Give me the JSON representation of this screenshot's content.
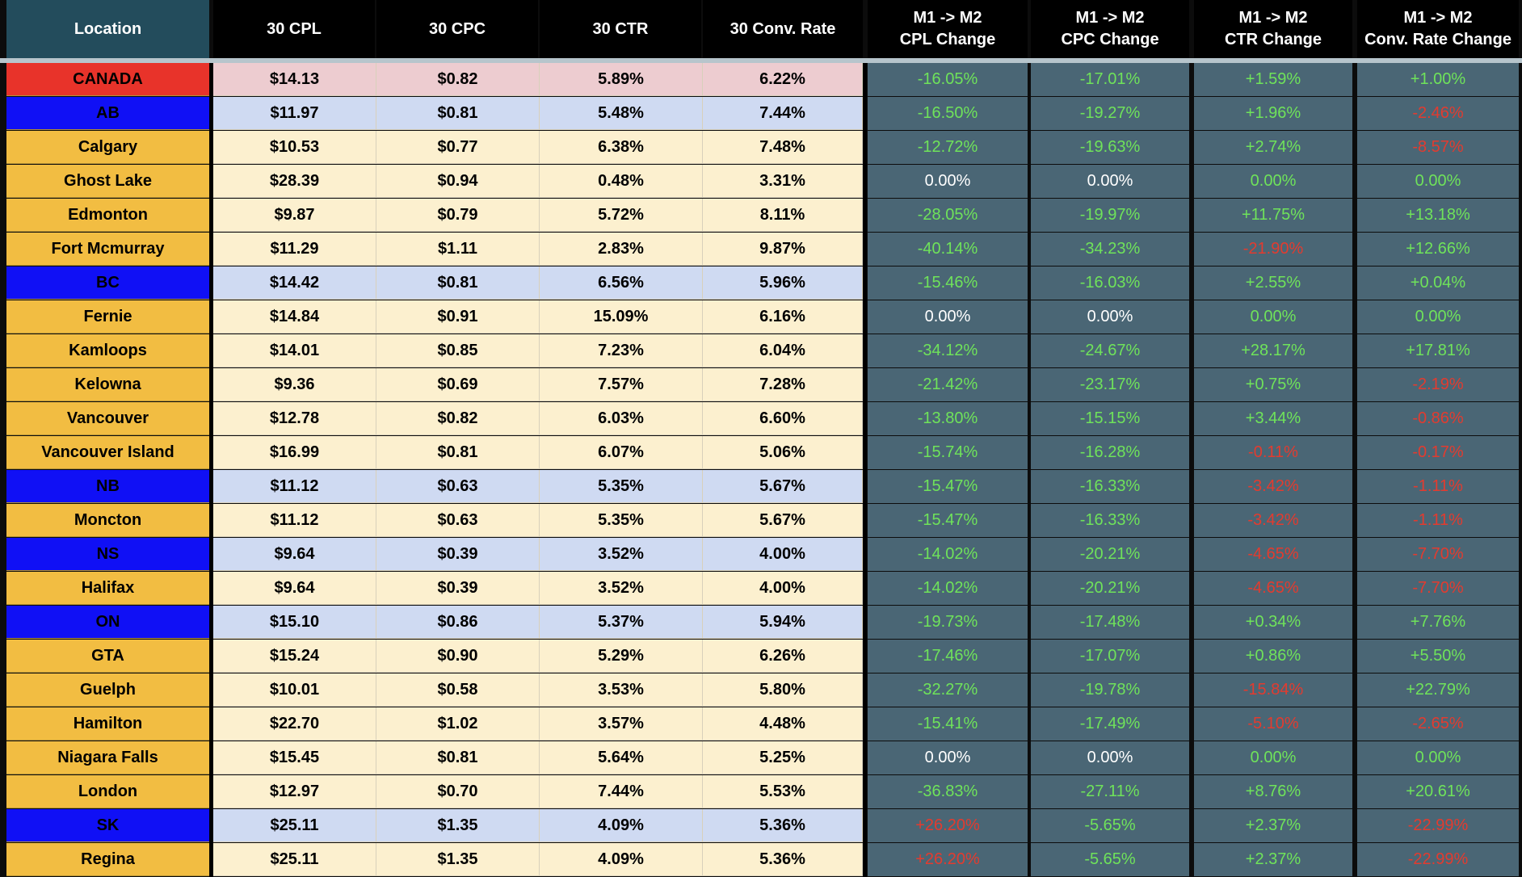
{
  "header": {
    "location": "Location",
    "cpl": "30 CPL",
    "cpc": "30 CPC",
    "ctr": "30 CTR",
    "conv": "30 Conv. Rate",
    "cpl_change": "M1 -> M2\nCPL Change",
    "cpc_change": "M1 -> M2\nCPC Change",
    "ctr_change": "M1 -> M2\nCTR Change",
    "conv_change": "M1 -> M2\nConv. Rate Change"
  },
  "colors": {
    "country_loc": "#e8332a",
    "country_data": "#edccd0",
    "province_loc": "#1010f5",
    "province_data": "#cfdaf2",
    "city_loc": "#f2bd42",
    "city_data": "#fcf0cf",
    "change_bg": "#4a6675",
    "positive": "#6fe35a",
    "negative": "#e33b2f"
  },
  "rows": [
    {
      "type": "country",
      "location": "CANADA",
      "cpl": "$14.13",
      "cpc": "$0.82",
      "ctr": "5.89%",
      "conv": "6.22%",
      "cpl_change": "-16.05%",
      "cpc_change": "-17.01%",
      "ctr_change": "+1.59%",
      "conv_change": "+1.00%",
      "cpl_s": "pos",
      "cpc_s": "pos",
      "ctr_s": "pos",
      "conv_s": "pos"
    },
    {
      "type": "province",
      "location": "AB",
      "cpl": "$11.97",
      "cpc": "$0.81",
      "ctr": "5.48%",
      "conv": "7.44%",
      "cpl_change": "-16.50%",
      "cpc_change": "-19.27%",
      "ctr_change": "+1.96%",
      "conv_change": "-2.46%",
      "cpl_s": "pos",
      "cpc_s": "pos",
      "ctr_s": "pos",
      "conv_s": "neg"
    },
    {
      "type": "city",
      "location": "Calgary",
      "cpl": "$10.53",
      "cpc": "$0.77",
      "ctr": "6.38%",
      "conv": "7.48%",
      "cpl_change": "-12.72%",
      "cpc_change": "-19.63%",
      "ctr_change": "+2.74%",
      "conv_change": "-8.57%",
      "cpl_s": "pos",
      "cpc_s": "pos",
      "ctr_s": "pos",
      "conv_s": "neg"
    },
    {
      "type": "city",
      "location": "Ghost Lake",
      "cpl": "$28.39",
      "cpc": "$0.94",
      "ctr": "0.48%",
      "conv": "3.31%",
      "cpl_change": "0.00%",
      "cpc_change": "0.00%",
      "ctr_change": "0.00%",
      "conv_change": "0.00%",
      "cpl_s": "zero",
      "cpc_s": "zero",
      "ctr_s": "pos",
      "conv_s": "pos"
    },
    {
      "type": "city",
      "location": "Edmonton",
      "cpl": "$9.87",
      "cpc": "$0.79",
      "ctr": "5.72%",
      "conv": "8.11%",
      "cpl_change": "-28.05%",
      "cpc_change": "-19.97%",
      "ctr_change": "+11.75%",
      "conv_change": "+13.18%",
      "cpl_s": "pos",
      "cpc_s": "pos",
      "ctr_s": "pos",
      "conv_s": "pos"
    },
    {
      "type": "city",
      "location": "Fort Mcmurray",
      "cpl": "$11.29",
      "cpc": "$1.11",
      "ctr": "2.83%",
      "conv": "9.87%",
      "cpl_change": "-40.14%",
      "cpc_change": "-34.23%",
      "ctr_change": "-21.90%",
      "conv_change": "+12.66%",
      "cpl_s": "pos",
      "cpc_s": "pos",
      "ctr_s": "neg",
      "conv_s": "pos"
    },
    {
      "type": "province",
      "location": "BC",
      "cpl": "$14.42",
      "cpc": "$0.81",
      "ctr": "6.56%",
      "conv": "5.96%",
      "cpl_change": "-15.46%",
      "cpc_change": "-16.03%",
      "ctr_change": "+2.55%",
      "conv_change": "+0.04%",
      "cpl_s": "pos",
      "cpc_s": "pos",
      "ctr_s": "pos",
      "conv_s": "pos"
    },
    {
      "type": "city",
      "location": "Fernie",
      "cpl": "$14.84",
      "cpc": "$0.91",
      "ctr": "15.09%",
      "conv": "6.16%",
      "cpl_change": "0.00%",
      "cpc_change": "0.00%",
      "ctr_change": "0.00%",
      "conv_change": "0.00%",
      "cpl_s": "zero",
      "cpc_s": "zero",
      "ctr_s": "pos",
      "conv_s": "pos"
    },
    {
      "type": "city",
      "location": "Kamloops",
      "cpl": "$14.01",
      "cpc": "$0.85",
      "ctr": "7.23%",
      "conv": "6.04%",
      "cpl_change": "-34.12%",
      "cpc_change": "-24.67%",
      "ctr_change": "+28.17%",
      "conv_change": "+17.81%",
      "cpl_s": "pos",
      "cpc_s": "pos",
      "ctr_s": "pos",
      "conv_s": "pos"
    },
    {
      "type": "city",
      "location": "Kelowna",
      "cpl": "$9.36",
      "cpc": "$0.69",
      "ctr": "7.57%",
      "conv": "7.28%",
      "cpl_change": "-21.42%",
      "cpc_change": "-23.17%",
      "ctr_change": "+0.75%",
      "conv_change": "-2.19%",
      "cpl_s": "pos",
      "cpc_s": "pos",
      "ctr_s": "pos",
      "conv_s": "neg"
    },
    {
      "type": "city",
      "location": "Vancouver",
      "cpl": "$12.78",
      "cpc": "$0.82",
      "ctr": "6.03%",
      "conv": "6.60%",
      "cpl_change": "-13.80%",
      "cpc_change": "-15.15%",
      "ctr_change": "+3.44%",
      "conv_change": "-0.86%",
      "cpl_s": "pos",
      "cpc_s": "pos",
      "ctr_s": "pos",
      "conv_s": "neg"
    },
    {
      "type": "city",
      "location": "Vancouver Island",
      "cpl": "$16.99",
      "cpc": "$0.81",
      "ctr": "6.07%",
      "conv": "5.06%",
      "cpl_change": "-15.74%",
      "cpc_change": "-16.28%",
      "ctr_change": "-0.11%",
      "conv_change": "-0.17%",
      "cpl_s": "pos",
      "cpc_s": "pos",
      "ctr_s": "neg",
      "conv_s": "neg"
    },
    {
      "type": "province",
      "location": "NB",
      "cpl": "$11.12",
      "cpc": "$0.63",
      "ctr": "5.35%",
      "conv": "5.67%",
      "cpl_change": "-15.47%",
      "cpc_change": "-16.33%",
      "ctr_change": "-3.42%",
      "conv_change": "-1.11%",
      "cpl_s": "pos",
      "cpc_s": "pos",
      "ctr_s": "neg",
      "conv_s": "neg"
    },
    {
      "type": "city",
      "location": "Moncton",
      "cpl": "$11.12",
      "cpc": "$0.63",
      "ctr": "5.35%",
      "conv": "5.67%",
      "cpl_change": "-15.47%",
      "cpc_change": "-16.33%",
      "ctr_change": "-3.42%",
      "conv_change": "-1.11%",
      "cpl_s": "pos",
      "cpc_s": "pos",
      "ctr_s": "neg",
      "conv_s": "neg"
    },
    {
      "type": "province",
      "location": "NS",
      "cpl": "$9.64",
      "cpc": "$0.39",
      "ctr": "3.52%",
      "conv": "4.00%",
      "cpl_change": "-14.02%",
      "cpc_change": "-20.21%",
      "ctr_change": "-4.65%",
      "conv_change": "-7.70%",
      "cpl_s": "pos",
      "cpc_s": "pos",
      "ctr_s": "neg",
      "conv_s": "neg"
    },
    {
      "type": "city",
      "location": "Halifax",
      "cpl": "$9.64",
      "cpc": "$0.39",
      "ctr": "3.52%",
      "conv": "4.00%",
      "cpl_change": "-14.02%",
      "cpc_change": "-20.21%",
      "ctr_change": "-4.65%",
      "conv_change": "-7.70%",
      "cpl_s": "pos",
      "cpc_s": "pos",
      "ctr_s": "neg",
      "conv_s": "neg"
    },
    {
      "type": "province",
      "location": "ON",
      "cpl": "$15.10",
      "cpc": "$0.86",
      "ctr": "5.37%",
      "conv": "5.94%",
      "cpl_change": "-19.73%",
      "cpc_change": "-17.48%",
      "ctr_change": "+0.34%",
      "conv_change": "+7.76%",
      "cpl_s": "pos",
      "cpc_s": "pos",
      "ctr_s": "pos",
      "conv_s": "pos"
    },
    {
      "type": "city",
      "location": "GTA",
      "cpl": "$15.24",
      "cpc": "$0.90",
      "ctr": "5.29%",
      "conv": "6.26%",
      "cpl_change": "-17.46%",
      "cpc_change": "-17.07%",
      "ctr_change": "+0.86%",
      "conv_change": "+5.50%",
      "cpl_s": "pos",
      "cpc_s": "pos",
      "ctr_s": "pos",
      "conv_s": "pos"
    },
    {
      "type": "city",
      "location": "Guelph",
      "cpl": "$10.01",
      "cpc": "$0.58",
      "ctr": "3.53%",
      "conv": "5.80%",
      "cpl_change": "-32.27%",
      "cpc_change": "-19.78%",
      "ctr_change": "-15.84%",
      "conv_change": "+22.79%",
      "cpl_s": "pos",
      "cpc_s": "pos",
      "ctr_s": "neg",
      "conv_s": "pos"
    },
    {
      "type": "city",
      "location": "Hamilton",
      "cpl": "$22.70",
      "cpc": "$1.02",
      "ctr": "3.57%",
      "conv": "4.48%",
      "cpl_change": "-15.41%",
      "cpc_change": "-17.49%",
      "ctr_change": "-5.10%",
      "conv_change": "-2.65%",
      "cpl_s": "pos",
      "cpc_s": "pos",
      "ctr_s": "neg",
      "conv_s": "neg"
    },
    {
      "type": "city",
      "location": "Niagara Falls",
      "cpl": "$15.45",
      "cpc": "$0.81",
      "ctr": "5.64%",
      "conv": "5.25%",
      "cpl_change": "0.00%",
      "cpc_change": "0.00%",
      "ctr_change": "0.00%",
      "conv_change": "0.00%",
      "cpl_s": "zero",
      "cpc_s": "zero",
      "ctr_s": "pos",
      "conv_s": "pos"
    },
    {
      "type": "city",
      "location": "London",
      "cpl": "$12.97",
      "cpc": "$0.70",
      "ctr": "7.44%",
      "conv": "5.53%",
      "cpl_change": "-36.83%",
      "cpc_change": "-27.11%",
      "ctr_change": "+8.76%",
      "conv_change": "+20.61%",
      "cpl_s": "pos",
      "cpc_s": "pos",
      "ctr_s": "pos",
      "conv_s": "pos"
    },
    {
      "type": "province",
      "location": "SK",
      "cpl": "$25.11",
      "cpc": "$1.35",
      "ctr": "4.09%",
      "conv": "5.36%",
      "cpl_change": "+26.20%",
      "cpc_change": "-5.65%",
      "ctr_change": "+2.37%",
      "conv_change": "-22.99%",
      "cpl_s": "neg",
      "cpc_s": "pos",
      "ctr_s": "pos",
      "conv_s": "neg"
    },
    {
      "type": "city",
      "location": "Regina",
      "cpl": "$25.11",
      "cpc": "$1.35",
      "ctr": "4.09%",
      "conv": "5.36%",
      "cpl_change": "+26.20%",
      "cpc_change": "-5.65%",
      "ctr_change": "+2.37%",
      "conv_change": "-22.99%",
      "cpl_s": "neg",
      "cpc_s": "pos",
      "ctr_s": "pos",
      "conv_s": "neg"
    }
  ]
}
